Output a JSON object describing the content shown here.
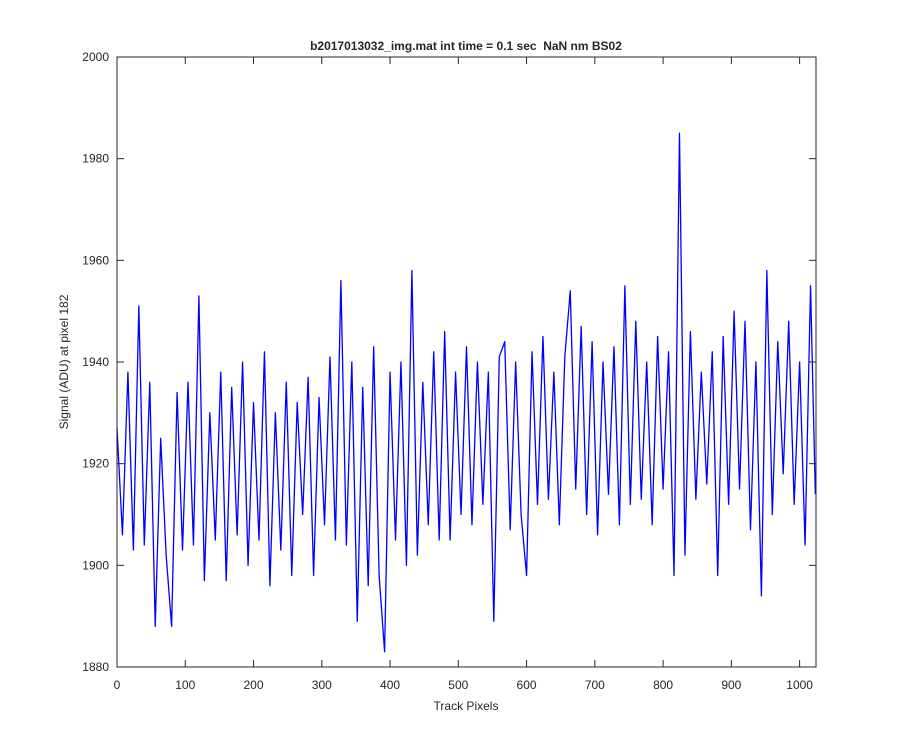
{
  "chart_data": {
    "type": "line",
    "title": "b2017013032_img.mat int time = 0.1 sec  NaN nm BS02",
    "xlabel": "Track Pixels",
    "ylabel": "Signal (ADU) at pixel 182",
    "color": "#0000ff",
    "xlim": [
      0,
      1024
    ],
    "ylim": [
      1880,
      2000
    ],
    "xticks": [
      0,
      100,
      200,
      300,
      400,
      500,
      600,
      700,
      800,
      900,
      1000
    ],
    "yticks": [
      1880,
      1900,
      1920,
      1940,
      1960,
      1980,
      2000
    ],
    "grid": false,
    "x": [
      0,
      8,
      16,
      24,
      32,
      40,
      48,
      56,
      64,
      72,
      80,
      88,
      96,
      104,
      112,
      120,
      128,
      136,
      144,
      152,
      160,
      168,
      176,
      184,
      192,
      200,
      208,
      216,
      224,
      232,
      240,
      248,
      256,
      264,
      272,
      280,
      288,
      296,
      304,
      312,
      320,
      328,
      336,
      344,
      352,
      360,
      368,
      376,
      384,
      392,
      400,
      408,
      416,
      424,
      432,
      440,
      448,
      456,
      464,
      472,
      480,
      488,
      496,
      504,
      512,
      520,
      528,
      536,
      544,
      552,
      560,
      568,
      576,
      584,
      592,
      600,
      608,
      616,
      624,
      632,
      640,
      648,
      656,
      664,
      672,
      680,
      688,
      696,
      704,
      712,
      720,
      728,
      736,
      744,
      752,
      760,
      768,
      776,
      784,
      792,
      800,
      808,
      816,
      824,
      832,
      840,
      848,
      856,
      864,
      872,
      880,
      888,
      896,
      904,
      912,
      920,
      928,
      936,
      944,
      952,
      960,
      968,
      976,
      984,
      992,
      1000,
      1008,
      1016,
      1023
    ],
    "values": [
      1927,
      1906,
      1938,
      1903,
      1951,
      1904,
      1936,
      1888,
      1925,
      1902,
      1888,
      1934,
      1903,
      1936,
      1904,
      1953,
      1897,
      1930,
      1905,
      1938,
      1897,
      1935,
      1906,
      1940,
      1900,
      1932,
      1905,
      1942,
      1896,
      1930,
      1903,
      1936,
      1898,
      1932,
      1910,
      1937,
      1898,
      1933,
      1908,
      1941,
      1905,
      1956,
      1904,
      1940,
      1889,
      1935,
      1896,
      1943,
      1898,
      1883,
      1938,
      1905,
      1940,
      1900,
      1958,
      1902,
      1936,
      1908,
      1942,
      1905,
      1946,
      1905,
      1938,
      1910,
      1943,
      1908,
      1940,
      1912,
      1938,
      1889,
      1941,
      1944,
      1907,
      1940,
      1910,
      1898,
      1942,
      1912,
      1945,
      1913,
      1938,
      1908,
      1941,
      1954,
      1915,
      1947,
      1910,
      1944,
      1906,
      1940,
      1914,
      1943,
      1908,
      1955,
      1912,
      1948,
      1913,
      1940,
      1908,
      1945,
      1915,
      1942,
      1898,
      1985,
      1902,
      1946,
      1913,
      1938,
      1916,
      1942,
      1898,
      1945,
      1912,
      1950,
      1915,
      1948,
      1907,
      1940,
      1894,
      1958,
      1910,
      1944,
      1918,
      1948,
      1912,
      1940,
      1904,
      1955,
      1914
    ]
  }
}
